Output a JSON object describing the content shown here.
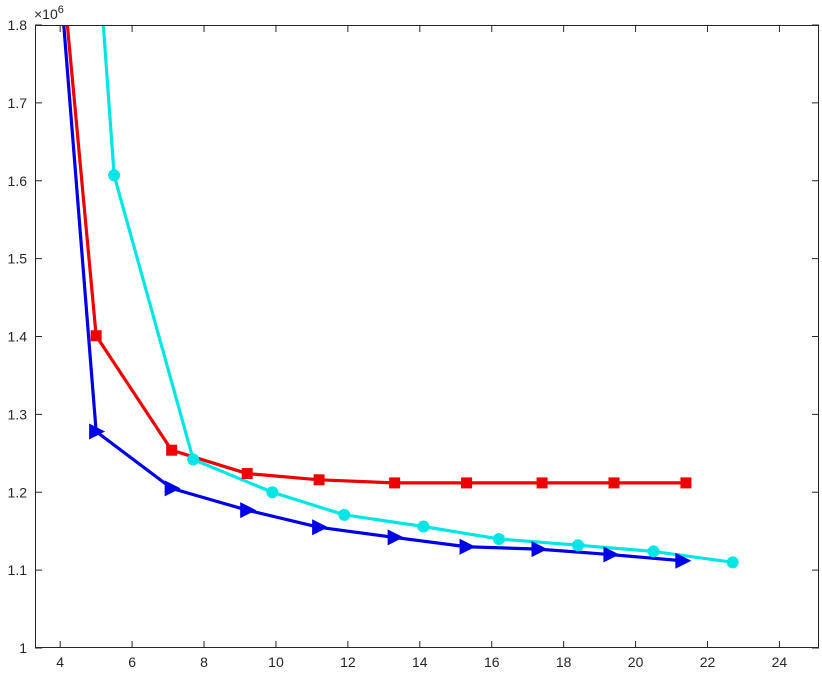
{
  "chart_data": {
    "type": "line",
    "title": "",
    "xlabel": "",
    "ylabel": "",
    "xlim": [
      3.3,
      25.1
    ],
    "ylim": [
      1000000,
      1800000
    ],
    "x_ticks": [
      4,
      6,
      8,
      10,
      12,
      14,
      16,
      18,
      20,
      22,
      24
    ],
    "y_ticks": [
      1,
      1.1,
      1.2,
      1.3,
      1.4,
      1.5,
      1.6,
      1.7,
      1.8
    ],
    "y_tick_labels": [
      "1",
      "1.1",
      "1.2",
      "1.3",
      "1.4",
      "1.5",
      "1.6",
      "1.7",
      "1.8"
    ],
    "x_tick_labels": [
      "4",
      "6",
      "8",
      "10",
      "12",
      "14",
      "16",
      "18",
      "20",
      "22",
      "24"
    ],
    "y_exponent_base": "×10",
    "y_exponent_power": "6",
    "grid": false,
    "legend": "none",
    "series": [
      {
        "color": "#0000e6",
        "marker": "triangle-right",
        "x": [
          4.1,
          5.0,
          7.1,
          9.2,
          11.2,
          13.3,
          15.3,
          17.3,
          19.3,
          21.3
        ],
        "y": [
          1800000,
          1278000,
          1205000,
          1177000,
          1155000,
          1142000,
          1130000,
          1127000,
          1120000,
          1112000
        ],
        "marker_from": 1
      },
      {
        "color": "#ee0000",
        "marker": "square",
        "x": [
          4.2,
          5.0,
          7.1,
          9.2,
          11.2,
          13.3,
          15.3,
          17.4,
          19.4,
          21.4
        ],
        "y": [
          1800000,
          1401000,
          1254000,
          1224000,
          1216000,
          1212000,
          1212000,
          1212000,
          1212000,
          1212000
        ],
        "marker_from": 1
      },
      {
        "color": "#00e6e6",
        "marker": "circle",
        "x": [
          5.2,
          5.5,
          7.7,
          9.9,
          11.9,
          14.1,
          16.2,
          18.4,
          20.5,
          22.7
        ],
        "y": [
          1800000,
          1607000,
          1242000,
          1200000,
          1171000,
          1156000,
          1140000,
          1132000,
          1124000,
          1110000
        ],
        "marker_from": 1
      }
    ]
  }
}
